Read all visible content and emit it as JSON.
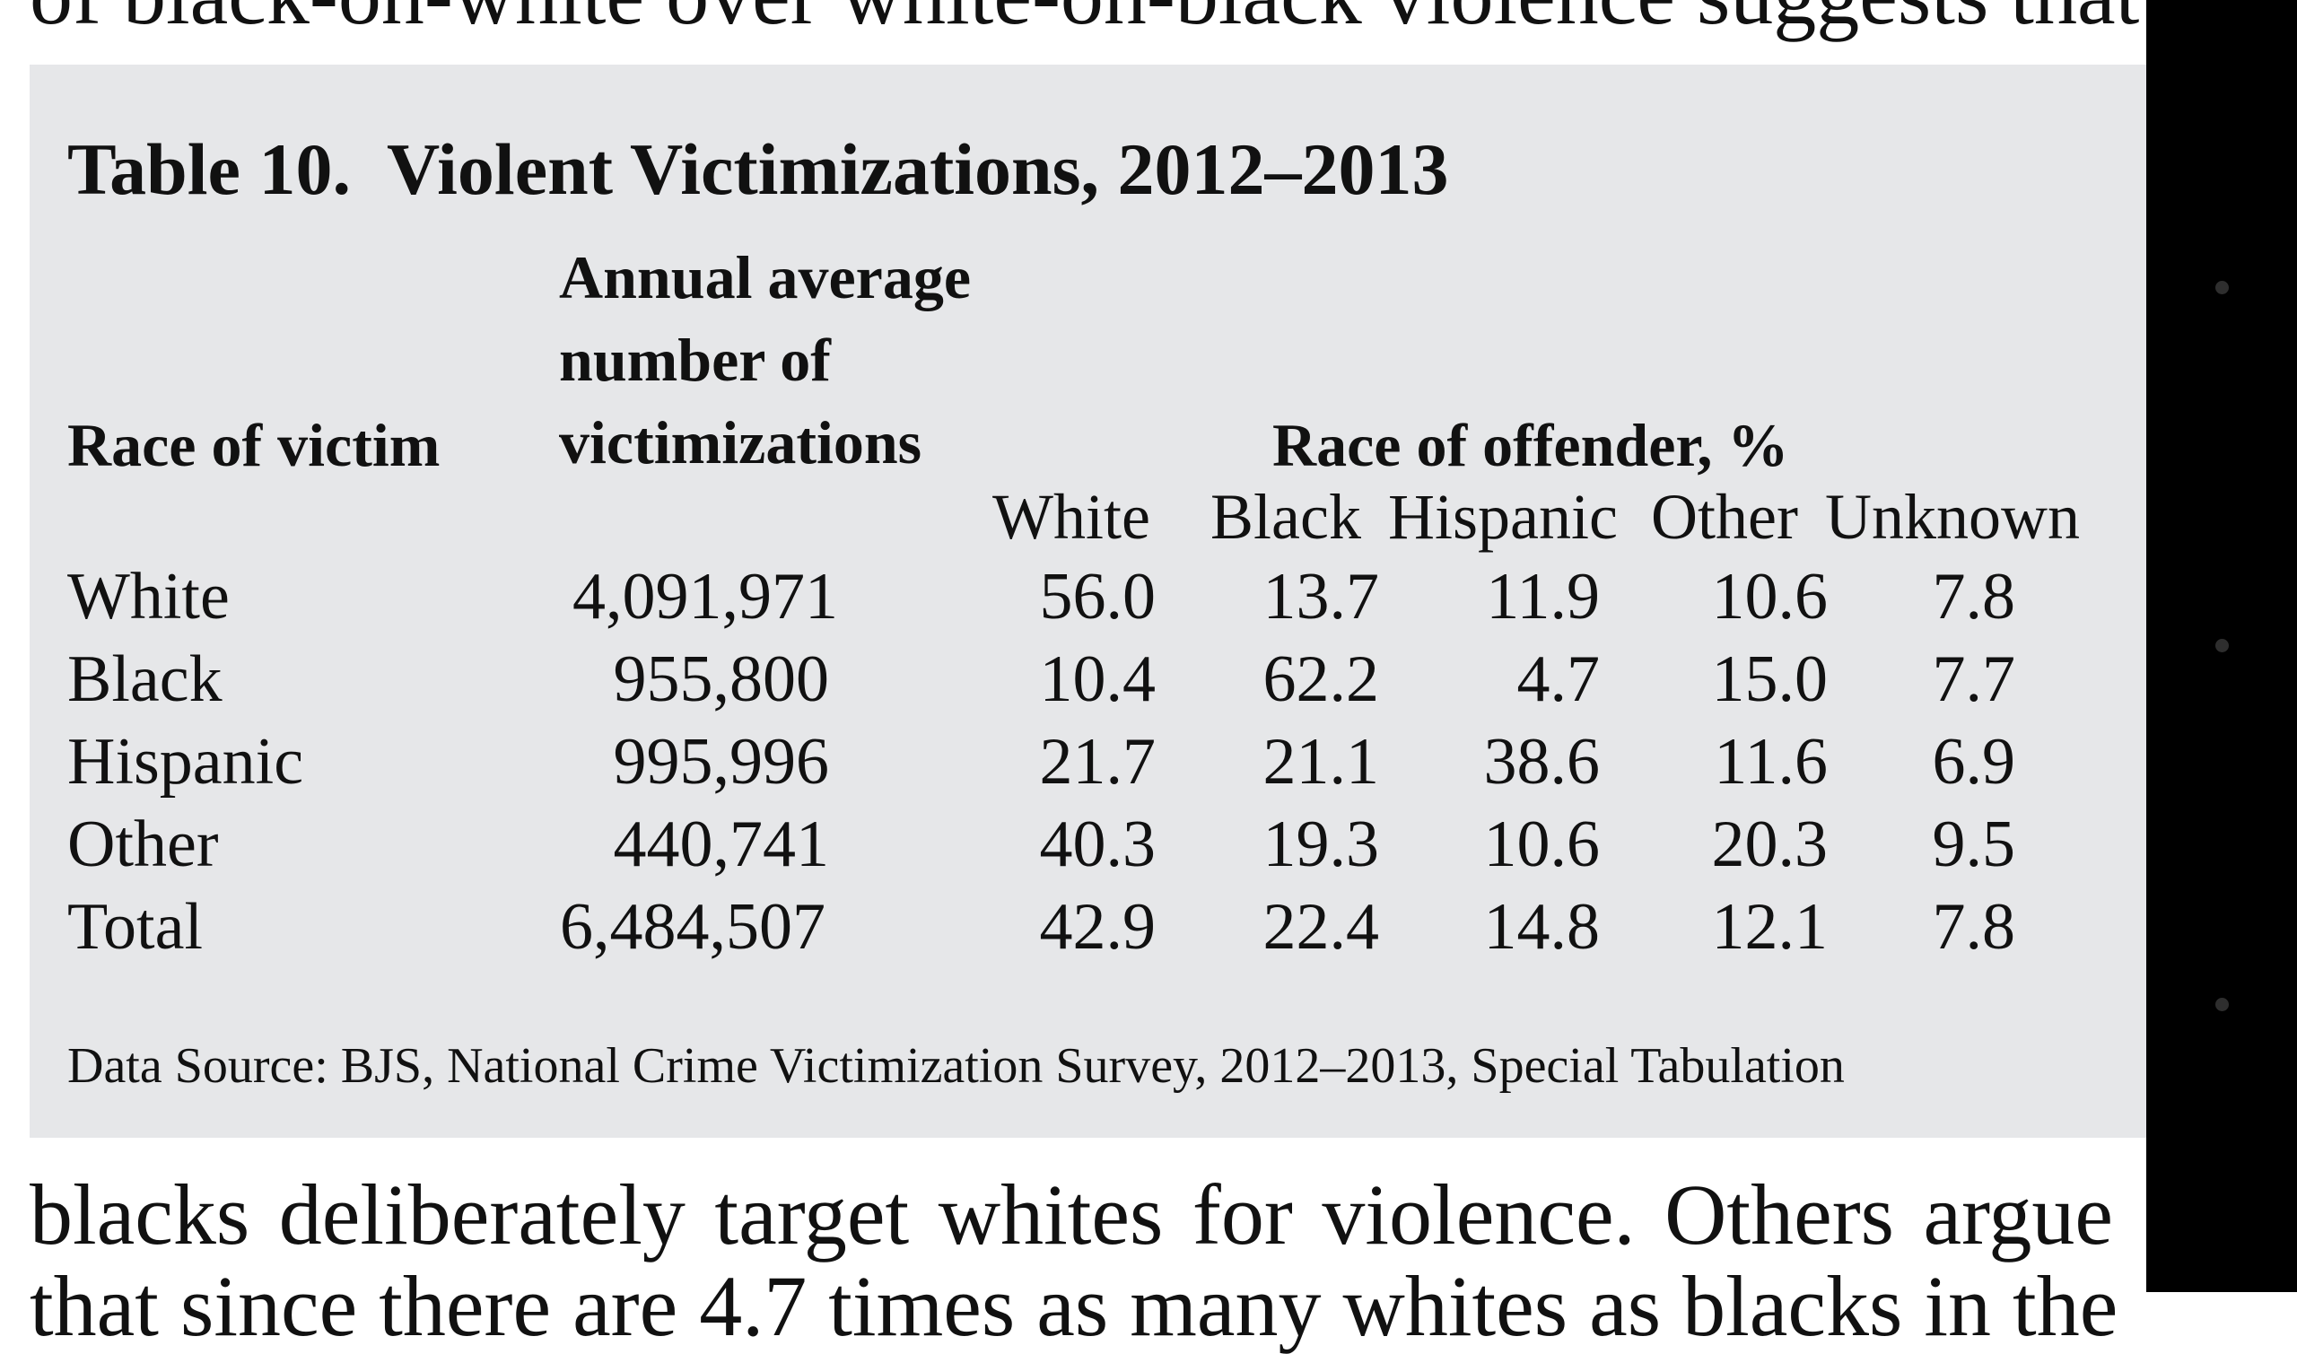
{
  "page_text": {
    "top_line": "of black-on-white over white-on-black violence suggests that",
    "line_after_1": "blacks deliberately target whites for violence. Others argue",
    "line_after_2": "that since there are 4.7 times as many whites as blacks in the"
  },
  "table": {
    "number": "Table 10.",
    "title": "Violent Victimizations, 2012–2013",
    "headers": {
      "race_of_victim": "Race of victim",
      "annual_average": [
        "Annual average",
        "number of",
        "victimizations"
      ],
      "race_of_offender": "Race of offender, %",
      "offender_columns": [
        "White",
        "Black",
        "Hispanic",
        "Other",
        "Unknown"
      ]
    },
    "rows": [
      {
        "victim": "White",
        "annual": "4,091,971",
        "values": [
          "56.0",
          "13.7",
          "11.9",
          "10.6",
          "7.8"
        ]
      },
      {
        "victim": "Black",
        "annual": "955,800",
        "values": [
          "10.4",
          "62.2",
          "4.7",
          "15.0",
          "7.7"
        ]
      },
      {
        "victim": "Hispanic",
        "annual": "995,996",
        "values": [
          "21.7",
          "21.1",
          "38.6",
          "11.6",
          "6.9"
        ]
      },
      {
        "victim": "Other",
        "annual": "440,741",
        "values": [
          "40.3",
          "19.3",
          "10.6",
          "20.3",
          "9.5"
        ]
      },
      {
        "victim": "Total",
        "annual": "6,484,507",
        "values": [
          "42.9",
          "22.4",
          "14.8",
          "12.1",
          "7.8"
        ]
      }
    ],
    "source": "Data Source: BJS, National Crime Victimization Survey, 2012–2013, Special Tabulation"
  },
  "colors": {
    "table_background": "#e6e7e9",
    "side_rail": "#000000",
    "text": "#111111"
  }
}
